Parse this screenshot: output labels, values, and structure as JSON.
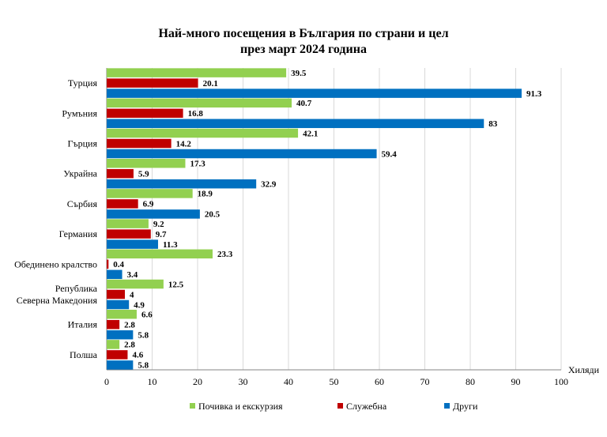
{
  "chart_data": {
    "type": "bar",
    "orientation": "horizontal",
    "title_lines": [
      "Най-много посещения в България по страни и цел",
      "през март 2024 година"
    ],
    "categories": [
      [
        "Турция"
      ],
      [
        "Румъния"
      ],
      [
        "Гърция"
      ],
      [
        "Украйна"
      ],
      [
        "Сърбия"
      ],
      [
        "Германия"
      ],
      [
        "Обединено кралство"
      ],
      [
        "Република",
        "Северна Македония"
      ],
      [
        "Италия"
      ],
      [
        "Полша"
      ]
    ],
    "series": [
      {
        "name": "Почивка и екскурзия",
        "color": "#92d050",
        "values": [
          39.5,
          40.7,
          42.1,
          17.3,
          18.9,
          9.2,
          23.3,
          12.5,
          6.6,
          2.8
        ]
      },
      {
        "name": "Служебна",
        "color": "#c00000",
        "values": [
          20.1,
          16.8,
          14.2,
          5.9,
          6.9,
          9.7,
          0.4,
          4.0,
          2.8,
          4.6
        ]
      },
      {
        "name": "Други",
        "color": "#0070c0",
        "values": [
          91.3,
          83.0,
          59.4,
          32.9,
          20.5,
          11.3,
          3.4,
          4.9,
          5.8,
          5.8
        ]
      }
    ],
    "xlim": [
      0,
      100
    ],
    "xticks": [
      0,
      10,
      20,
      30,
      40,
      50,
      60,
      70,
      80,
      90,
      100
    ],
    "unit_label": "Хиляди",
    "grid": "vertical",
    "legend_position": "bottom"
  }
}
